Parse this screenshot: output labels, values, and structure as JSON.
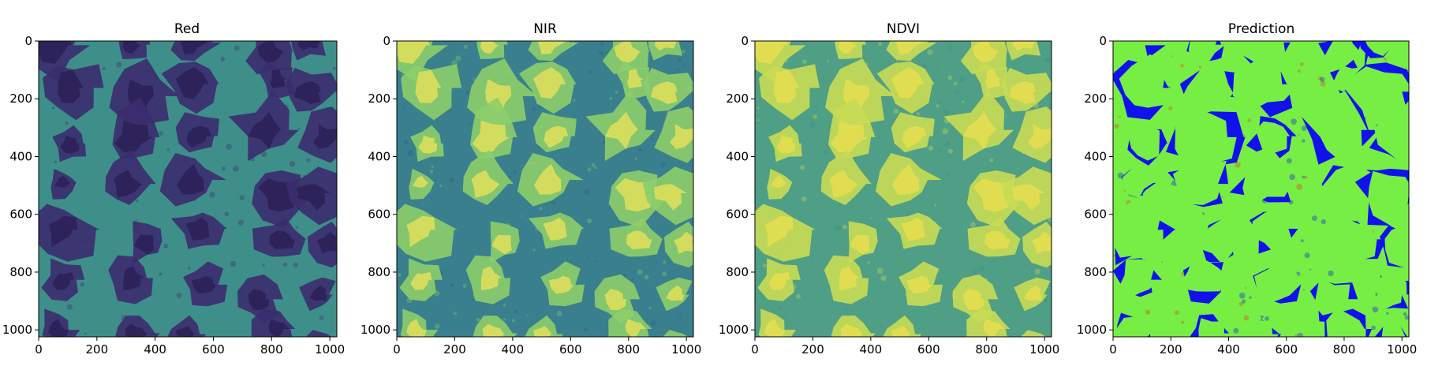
{
  "figure": {
    "panels": [
      {
        "id": "red",
        "title": "Red",
        "colormap": "viridis",
        "x_ticks": [
          "0",
          "200",
          "400",
          "600",
          "800",
          "1000"
        ],
        "y_ticks": [
          "0",
          "200",
          "400",
          "600",
          "800",
          "1000"
        ],
        "palette": [
          "#3b2c6e",
          "#2f5d8a",
          "#3e8f8a",
          "#6cc08a"
        ]
      },
      {
        "id": "nir",
        "title": "NIR",
        "colormap": "viridis",
        "x_ticks": [
          "0",
          "200",
          "400",
          "600",
          "800",
          "1000"
        ],
        "y_ticks": [
          "0",
          "200",
          "400",
          "600",
          "800",
          "1000"
        ],
        "palette": [
          "#2e5f8a",
          "#3a7f8d",
          "#8cce6a",
          "#e8e15a"
        ]
      },
      {
        "id": "ndvi",
        "title": "NDVI",
        "colormap": "viridis",
        "x_ticks": [
          "0",
          "200",
          "400",
          "600",
          "800",
          "1000"
        ],
        "y_ticks": [
          "0",
          "200",
          "400",
          "600",
          "800",
          "1000"
        ],
        "palette": [
          "#3d8a8a",
          "#4f9e86",
          "#c8dc54",
          "#e8e04e"
        ]
      },
      {
        "id": "prediction",
        "title": "Prediction",
        "colormap": "categorical",
        "x_ticks": [
          "0",
          "200",
          "400",
          "600",
          "800",
          "1000"
        ],
        "y_ticks": [
          "0",
          "200",
          "400",
          "600",
          "800",
          "1000"
        ],
        "palette": [
          "#e8332a",
          "#77ee44",
          "#1111ee",
          "#e8332a"
        ]
      }
    ]
  }
}
